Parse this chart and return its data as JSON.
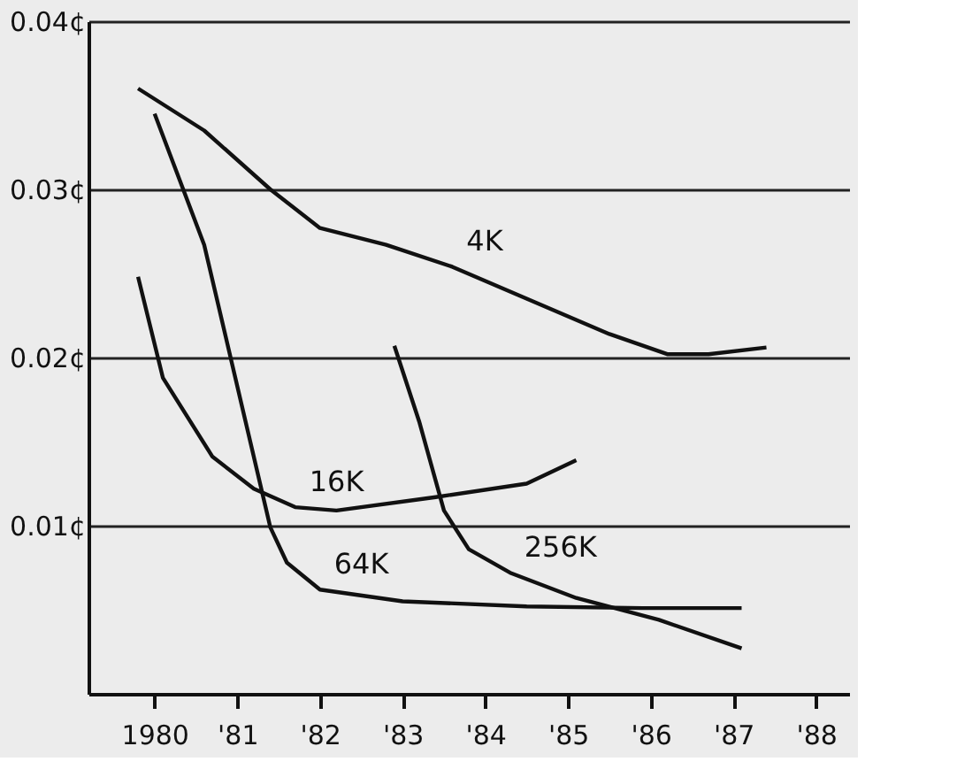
{
  "chart_data": {
    "type": "line",
    "xlim": [
      1979.2,
      1988.4
    ],
    "ylim": [
      0,
      0.04
    ],
    "xticks": [
      {
        "value": 1980,
        "label": "1980"
      },
      {
        "value": 1981,
        "label": "'81"
      },
      {
        "value": 1982,
        "label": "'82"
      },
      {
        "value": 1983,
        "label": "'83"
      },
      {
        "value": 1984,
        "label": "'84"
      },
      {
        "value": 1985,
        "label": "'85"
      },
      {
        "value": 1986,
        "label": "'86"
      },
      {
        "value": 1987,
        "label": "'87"
      },
      {
        "value": 1988,
        "label": "'88"
      }
    ],
    "yticks": [
      {
        "value": 0.01,
        "label": "0.01¢"
      },
      {
        "value": 0.02,
        "label": "0.02¢"
      },
      {
        "value": 0.03,
        "label": "0.03¢"
      },
      {
        "value": 0.04,
        "label": "0.04¢"
      }
    ],
    "grid": "y",
    "legend": false,
    "marker": "none",
    "line_style": "solid",
    "series": [
      {
        "name": "4K",
        "color": "#111111",
        "x": [
          1979.8,
          1980.6,
          1981.4,
          1982.0,
          1982.8,
          1983.6,
          1984.5,
          1985.5,
          1986.2,
          1986.7,
          1987.4
        ],
        "values": [
          0.036,
          0.0335,
          0.03,
          0.0277,
          0.0267,
          0.0254,
          0.0235,
          0.0214,
          0.0202,
          0.0202,
          0.0206
        ]
      },
      {
        "name": "64K",
        "color": "#111111",
        "x": [
          1980.0,
          1980.6,
          1981.1,
          1981.4,
          1981.6,
          1982.0,
          1983.0,
          1984.5,
          1985.9,
          1987.1
        ],
        "values": [
          0.0345,
          0.0267,
          0.0162,
          0.0099,
          0.0078,
          0.0062,
          0.0055,
          0.0052,
          0.0051,
          0.0051
        ]
      },
      {
        "name": "16K",
        "color": "#111111",
        "x": [
          1979.8,
          1980.1,
          1980.7,
          1981.2,
          1981.7,
          1982.2,
          1983.4,
          1984.5,
          1985.1
        ],
        "values": [
          0.0248,
          0.0188,
          0.0141,
          0.0122,
          0.0111,
          0.0109,
          0.0117,
          0.0125,
          0.0139
        ]
      },
      {
        "name": "256K",
        "color": "#111111",
        "x": [
          1982.9,
          1983.2,
          1983.5,
          1983.8,
          1984.3,
          1985.1,
          1986.1,
          1987.1
        ],
        "values": [
          0.0207,
          0.0162,
          0.0109,
          0.0086,
          0.0072,
          0.0057,
          0.0044,
          0.0027
        ]
      }
    ]
  }
}
